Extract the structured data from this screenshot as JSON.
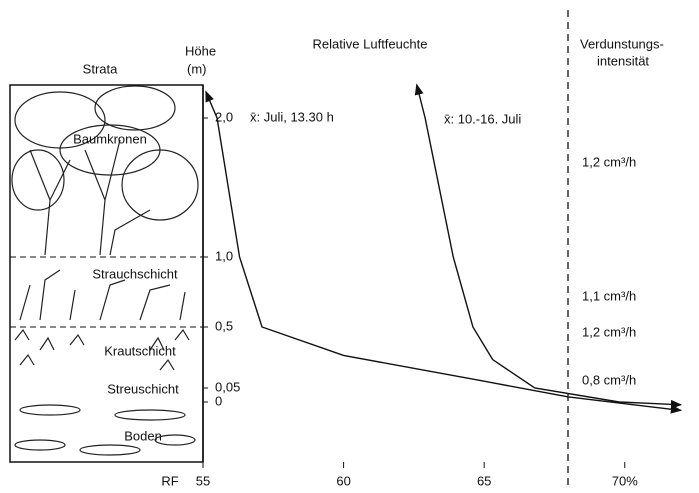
{
  "chart_data": {
    "type": "line",
    "headers": {
      "strata": "Strata",
      "height": [
        "Höhe",
        "(m)"
      ],
      "humidity": "Relative Luftfeuchte",
      "evaporation": [
        "Verdunstungs-",
        "intensität"
      ]
    },
    "strata": [
      "Baumkronen",
      "Strauchschicht",
      "Krautschicht",
      "Streuschicht",
      "Boden"
    ],
    "xlabel": "RF",
    "xlim": [
      55,
      72
    ],
    "xticks": [
      55,
      60,
      65,
      {
        "value": 70,
        "label": "70%"
      }
    ],
    "yticks": [
      {
        "value": 2,
        "label": "2,0"
      },
      {
        "value": 1,
        "label": "1,0"
      },
      {
        "value": 0.5,
        "label": "0,5"
      },
      {
        "value": 0.05,
        "label": "0,05"
      },
      0
    ],
    "series": [
      {
        "name": "x̄: Juli, 13.30 h",
        "color": "#111111",
        "x": [
          55.1,
          55.5,
          56.3,
          57.1,
          60,
          65,
          68,
          72
        ],
        "values": [
          2.19,
          2,
          1,
          0.5,
          0.29,
          0.1,
          0.018,
          -0.03
        ]
      },
      {
        "name": "x̄: 10.-16. Juli",
        "color": "#111111",
        "x": [
          62.6,
          62.9,
          63.9,
          64.6,
          65.3,
          66.8,
          69.8,
          72
        ],
        "values": [
          2.24,
          2,
          1,
          0.5,
          0.26,
          0.05,
          0,
          -0.01
        ]
      }
    ],
    "evaporation": [
      "1,2 cm³/h",
      "1,1 cm³/h",
      "1,2 cm³/h",
      "0,8 cm³/h"
    ]
  }
}
